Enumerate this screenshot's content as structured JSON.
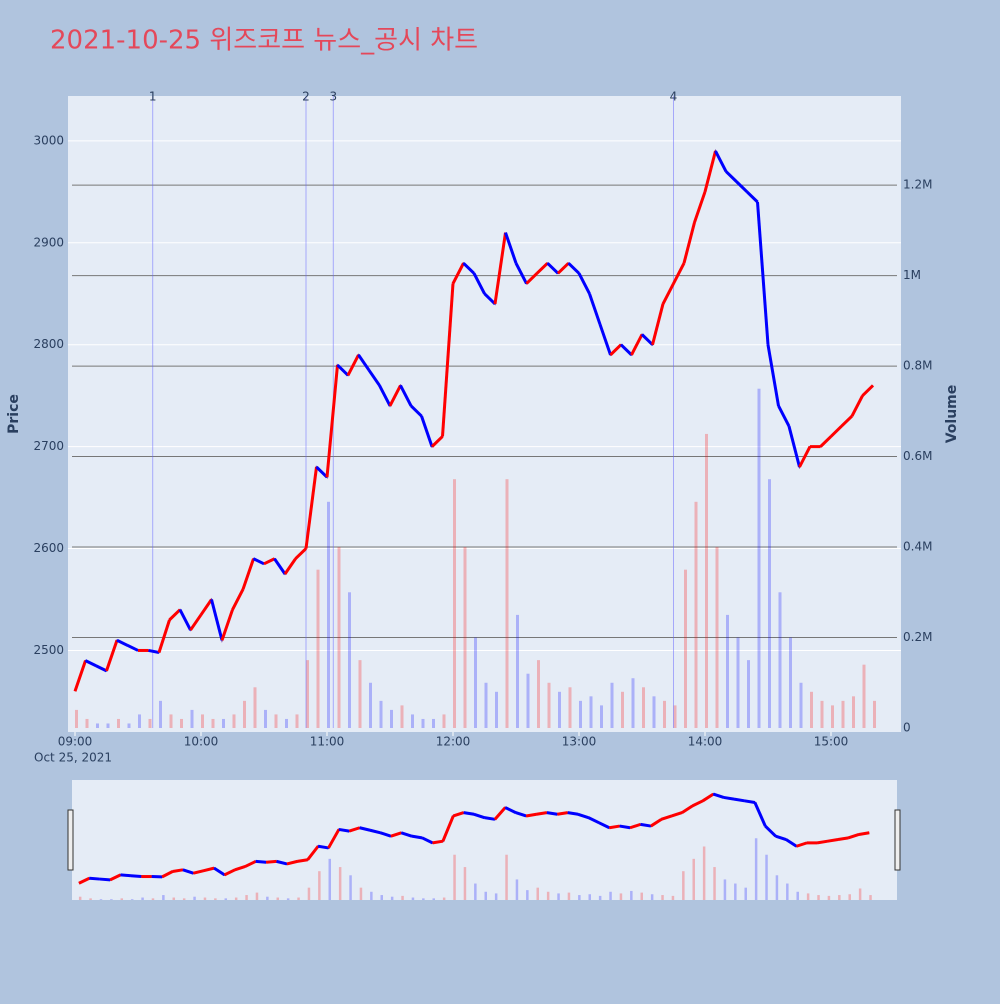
{
  "chart_data": {
    "type": "line",
    "title": "2021-10-25 위즈코프 뉴스_공시 차트",
    "y_label": "Price",
    "y2_label": "Volume",
    "x": [
      "09:00",
      "09:05",
      "09:10",
      "09:15",
      "09:20",
      "09:25",
      "09:30",
      "09:35",
      "09:40",
      "09:45",
      "09:50",
      "09:55",
      "10:00",
      "10:05",
      "10:10",
      "10:15",
      "10:20",
      "10:25",
      "10:30",
      "10:35",
      "10:40",
      "10:45",
      "10:50",
      "10:55",
      "11:00",
      "11:05",
      "11:10",
      "11:15",
      "11:20",
      "11:25",
      "11:30",
      "11:35",
      "11:40",
      "11:45",
      "11:50",
      "11:55",
      "12:00",
      "12:05",
      "12:10",
      "12:15",
      "12:20",
      "12:25",
      "12:30",
      "12:35",
      "12:40",
      "12:45",
      "12:50",
      "12:55",
      "13:00",
      "13:05",
      "13:10",
      "13:15",
      "13:20",
      "13:25",
      "13:30",
      "13:35",
      "13:40",
      "13:45",
      "13:50",
      "13:55",
      "14:00",
      "14:05",
      "14:10",
      "14:15",
      "14:20",
      "14:25",
      "14:30",
      "14:35",
      "14:40",
      "14:45",
      "14:50",
      "14:55",
      "15:00",
      "15:05",
      "15:10",
      "15:15",
      "15:20"
    ],
    "series": [
      {
        "name": "Price",
        "up_color": "#ff0000",
        "down_color": "#0000ff",
        "values": [
          2460,
          2490,
          2485,
          2480,
          2510,
          2505,
          2500,
          2500,
          2498,
          2530,
          2540,
          2520,
          2535,
          2550,
          2510,
          2540,
          2560,
          2590,
          2585,
          2590,
          2575,
          2590,
          2600,
          2680,
          2670,
          2780,
          2770,
          2790,
          2775,
          2760,
          2740,
          2760,
          2740,
          2730,
          2700,
          2710,
          2860,
          2880,
          2870,
          2850,
          2840,
          2910,
          2880,
          2860,
          2870,
          2880,
          2870,
          2880,
          2870,
          2850,
          2820,
          2790,
          2800,
          2790,
          2810,
          2800,
          2840,
          2860,
          2880,
          2920,
          2950,
          2990,
          2970,
          2960,
          2950,
          2940,
          2800,
          2740,
          2720,
          2680,
          2700,
          2700,
          2710,
          2720,
          2730,
          2750,
          2760
        ]
      },
      {
        "name": "Volume",
        "axis": "y2",
        "values": [
          40000,
          20000,
          10000,
          10000,
          20000,
          10000,
          30000,
          20000,
          60000,
          30000,
          20000,
          40000,
          30000,
          20000,
          20000,
          30000,
          60000,
          90000,
          40000,
          30000,
          20000,
          30000,
          150000,
          350000,
          500000,
          400000,
          300000,
          150000,
          100000,
          60000,
          40000,
          50000,
          30000,
          20000,
          20000,
          30000,
          550000,
          400000,
          200000,
          100000,
          80000,
          550000,
          250000,
          120000,
          150000,
          100000,
          80000,
          90000,
          60000,
          70000,
          50000,
          100000,
          80000,
          110000,
          90000,
          70000,
          60000,
          50000,
          350000,
          500000,
          650000,
          400000,
          250000,
          200000,
          150000,
          750000,
          550000,
          300000,
          200000,
          100000,
          80000,
          60000,
          50000,
          60000,
          70000,
          140000,
          60000
        ]
      }
    ],
    "xticks": [
      "09:00",
      "10:00",
      "11:00",
      "12:00",
      "13:00",
      "14:00",
      "15:00"
    ],
    "x_date_label": "Oct 25, 2021",
    "ylim": [
      2420,
      3044
    ],
    "yticks": [
      2500,
      2600,
      2700,
      2800,
      2900,
      3000
    ],
    "y2lim": [
      0,
      1397000
    ],
    "y2ticks": [
      0,
      {
        "value": 200000,
        "label": "0.2M"
      },
      {
        "value": 400000,
        "label": "0.4M"
      },
      {
        "value": 600000,
        "label": "0.6M"
      },
      {
        "value": 800000,
        "label": "0.8M"
      },
      {
        "value": 1000000,
        "label": "1M"
      },
      {
        "value": 1200000,
        "label": "1.2M"
      }
    ],
    "annotations": [
      {
        "label": "1",
        "x": "09:37"
      },
      {
        "label": "2",
        "x": "10:50"
      },
      {
        "label": "3",
        "x": "11:03"
      },
      {
        "label": "4",
        "x": "13:45"
      }
    ],
    "range_slider": true
  }
}
